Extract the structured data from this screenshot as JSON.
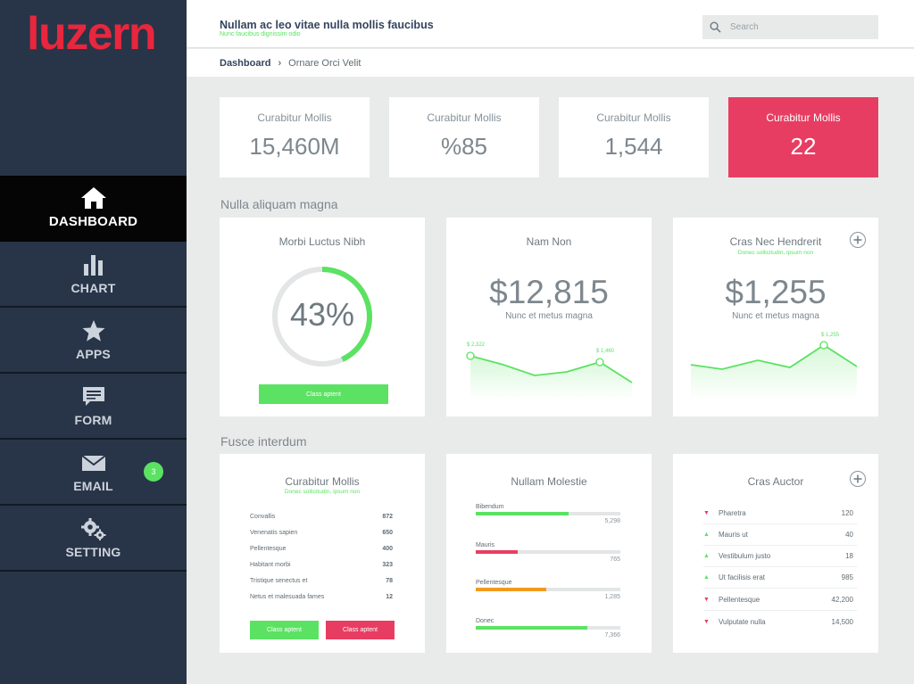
{
  "brand": {
    "logo_text": "luzern",
    "accent": "#e8263d",
    "green": "#5be262",
    "pink": "#e83d62"
  },
  "sidebar": {
    "items": [
      {
        "label": "DASHBOARD",
        "icon": "home-icon",
        "active": true
      },
      {
        "label": "CHART",
        "icon": "bar-chart-icon"
      },
      {
        "label": "APPS",
        "icon": "star-icon"
      },
      {
        "label": "FORM",
        "icon": "chat-form-icon"
      },
      {
        "label": "EMAIL",
        "icon": "envelope-icon",
        "badge": "3"
      },
      {
        "label": "SETTING",
        "icon": "gears-icon"
      }
    ]
  },
  "header": {
    "title": "Nullam ac leo vitae nulla mollis faucibus",
    "subtitle": "Nunc faucibus dignissim odio",
    "search_placeholder": "Search"
  },
  "breadcrumb": {
    "root": "Dashboard",
    "separator": "›",
    "current": "Ornare Orci Velit"
  },
  "stats": [
    {
      "label": "Curabitur Mollis",
      "value": "15,460M"
    },
    {
      "label": "Curabitur Mollis",
      "value": "%85"
    },
    {
      "label": "Curabitur Mollis",
      "value": "1,544"
    },
    {
      "label": "Curabitur Mollis",
      "value": "22",
      "highlight": true
    }
  ],
  "section1": {
    "title": "Nulla aliquam magna",
    "gauge": {
      "title": "Morbi Luctus Nibh",
      "value_text": "43%",
      "fraction": 0.43,
      "button": "Class aptent"
    },
    "card2": {
      "title": "Nam Non",
      "value": "$12,815",
      "caption": "Nunc et metus magna",
      "point_labels": [
        "$ 2,322",
        "$ 1,460"
      ]
    },
    "card3": {
      "title": "Cras Nec Hendrerit",
      "subtitle": "Donec sollicitudin, ipsum non",
      "value": "$1,255",
      "caption": "Nunc et metus magna",
      "point_labels": [
        "$ 1,255"
      ]
    }
  },
  "section2": {
    "title": "Fusce interdum",
    "list_card": {
      "title": "Curabitur Mollis",
      "subtitle": "Donec sollicitudin, ipsum non",
      "rows": [
        {
          "name": "Convallis",
          "value": "872"
        },
        {
          "name": "Venenatis sapien",
          "value": "650"
        },
        {
          "name": "Pellentesque",
          "value": "400"
        },
        {
          "name": "Habitant morbi",
          "value": "323"
        },
        {
          "name": "Tristique senectus et",
          "value": "78"
        },
        {
          "name": "Netus et malesuada fames",
          "value": "12"
        }
      ],
      "button_green": "Class aptent",
      "button_red": "Class aptent"
    },
    "bars_card": {
      "title": "Nullam Molestie",
      "bars": [
        {
          "label": "Bibendum",
          "value": "5,298",
          "fraction": 0.64,
          "color": "#5be262"
        },
        {
          "label": "Mauris",
          "value": "765",
          "fraction": 0.29,
          "color": "#e83d62"
        },
        {
          "label": "Pellentesque",
          "value": "1,285",
          "fraction": 0.49,
          "color": "#f29a1f"
        },
        {
          "label": "Donec",
          "value": "7,366",
          "fraction": 0.77,
          "color": "#5be262"
        }
      ]
    },
    "changes_card": {
      "title": "Cras Auctor",
      "rows": [
        {
          "name": "Pharetra",
          "value": "120",
          "dir": "down"
        },
        {
          "name": "Mauris ut",
          "value": "40",
          "dir": "up"
        },
        {
          "name": "Vestibulum justo",
          "value": "18",
          "dir": "up"
        },
        {
          "name": "Ut facilisis erat",
          "value": "985",
          "dir": "up"
        },
        {
          "name": "Pellentesque",
          "value": "42,200",
          "dir": "down"
        },
        {
          "name": "Vulputate nulla",
          "value": "14,500",
          "dir": "down"
        }
      ]
    }
  }
}
